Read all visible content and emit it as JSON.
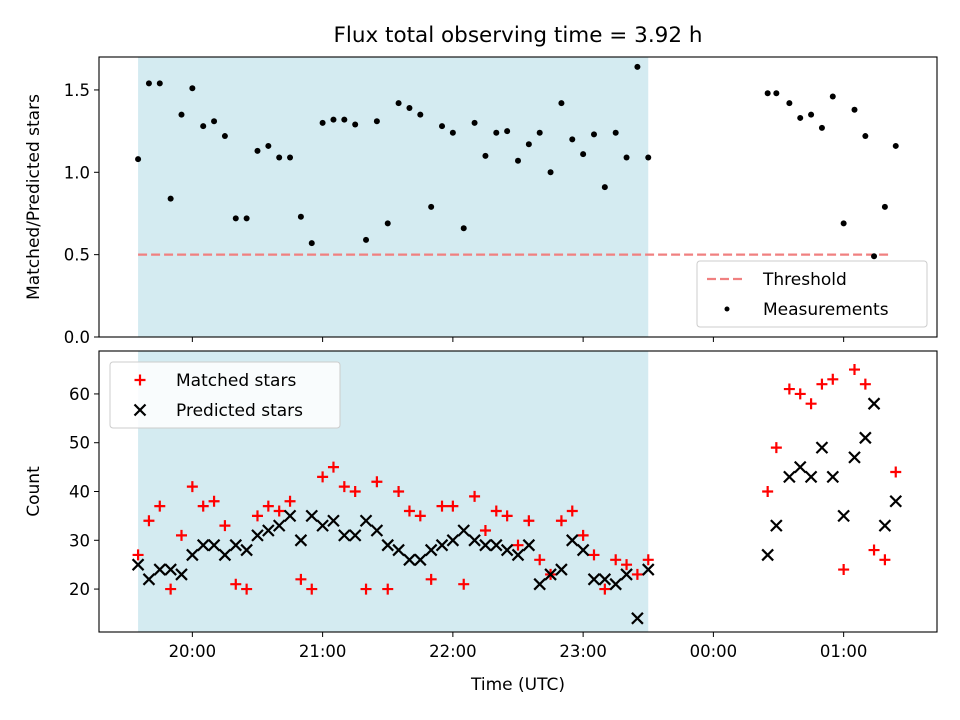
{
  "chart_data": {
    "title": "Flux total observing time = 3.92 h",
    "x_axis": {
      "label": "Time (UTC)",
      "ticks": [
        "20:00",
        "21:00",
        "22:00",
        "23:00",
        "00:00",
        "01:00"
      ]
    },
    "shaded_interval": {
      "start": "19:35",
      "end": "23:30",
      "color": "#d4ebf1"
    },
    "panels": [
      {
        "type": "scatter",
        "ylabel": "Matched/Predicted stars",
        "ylim": [
          0,
          1.7
        ],
        "yticks": [
          "0.0",
          "0.5",
          "1.0",
          "1.5"
        ],
        "legend_position": "lower right",
        "threshold": {
          "name": "Threshold",
          "value": 0.5,
          "from": "19:35",
          "to": "01:22",
          "color": "#f08080",
          "style": "dashed"
        },
        "series": [
          {
            "name": "Measurements",
            "color": "#000000",
            "marker": "dot",
            "points": [
              [
                "19:35",
                1.08
              ],
              [
                "19:40",
                1.54
              ],
              [
                "19:45",
                1.54
              ],
              [
                "19:50",
                0.84
              ],
              [
                "19:55",
                1.35
              ],
              [
                "20:00",
                1.51
              ],
              [
                "20:05",
                1.28
              ],
              [
                "20:10",
                1.31
              ],
              [
                "20:15",
                1.22
              ],
              [
                "20:20",
                0.72
              ],
              [
                "20:25",
                0.72
              ],
              [
                "20:30",
                1.13
              ],
              [
                "20:35",
                1.16
              ],
              [
                "20:40",
                1.09
              ],
              [
                "20:45",
                1.09
              ],
              [
                "20:50",
                0.73
              ],
              [
                "20:55",
                0.57
              ],
              [
                "21:00",
                1.3
              ],
              [
                "21:05",
                1.32
              ],
              [
                "21:10",
                1.32
              ],
              [
                "21:15",
                1.29
              ],
              [
                "21:20",
                0.59
              ],
              [
                "21:25",
                1.31
              ],
              [
                "21:30",
                0.69
              ],
              [
                "21:35",
                1.42
              ],
              [
                "21:40",
                1.39
              ],
              [
                "21:45",
                1.35
              ],
              [
                "21:50",
                0.79
              ],
              [
                "21:55",
                1.28
              ],
              [
                "22:00",
                1.24
              ],
              [
                "22:05",
                0.66
              ],
              [
                "22:10",
                1.3
              ],
              [
                "22:15",
                1.1
              ],
              [
                "22:20",
                1.24
              ],
              [
                "22:25",
                1.25
              ],
              [
                "22:30",
                1.07
              ],
              [
                "22:35",
                1.17
              ],
              [
                "22:40",
                1.24
              ],
              [
                "22:45",
                1.0
              ],
              [
                "22:50",
                1.42
              ],
              [
                "22:55",
                1.2
              ],
              [
                "23:00",
                1.11
              ],
              [
                "23:05",
                1.23
              ],
              [
                "23:10",
                0.91
              ],
              [
                "23:15",
                1.24
              ],
              [
                "23:20",
                1.09
              ],
              [
                "23:25",
                1.64
              ],
              [
                "23:30",
                1.09
              ],
              [
                "00:25",
                1.48
              ],
              [
                "00:29",
                1.48
              ],
              [
                "00:35",
                1.42
              ],
              [
                "00:40",
                1.33
              ],
              [
                "00:45",
                1.35
              ],
              [
                "00:50",
                1.27
              ],
              [
                "00:55",
                1.46
              ],
              [
                "01:00",
                0.69
              ],
              [
                "01:05",
                1.38
              ],
              [
                "01:10",
                1.22
              ],
              [
                "01:14",
                0.49
              ],
              [
                "01:19",
                0.79
              ],
              [
                "01:24",
                1.16
              ]
            ]
          }
        ]
      },
      {
        "type": "scatter",
        "ylabel": "Count",
        "ylim": [
          11.2,
          68.8
        ],
        "yticks": [
          "20",
          "30",
          "40",
          "50",
          "60"
        ],
        "legend_position": "upper left",
        "series": [
          {
            "name": "Matched stars",
            "color": "#ff0000",
            "marker": "plus",
            "points": [
              [
                "19:35",
                27
              ],
              [
                "19:40",
                34
              ],
              [
                "19:45",
                37
              ],
              [
                "19:50",
                20
              ],
              [
                "19:55",
                31
              ],
              [
                "20:00",
                41
              ],
              [
                "20:05",
                37
              ],
              [
                "20:10",
                38
              ],
              [
                "20:15",
                33
              ],
              [
                "20:20",
                21
              ],
              [
                "20:25",
                20
              ],
              [
                "20:30",
                35
              ],
              [
                "20:35",
                37
              ],
              [
                "20:40",
                36
              ],
              [
                "20:45",
                38
              ],
              [
                "20:50",
                22
              ],
              [
                "20:55",
                20
              ],
              [
                "21:00",
                43
              ],
              [
                "21:05",
                45
              ],
              [
                "21:10",
                41
              ],
              [
                "21:15",
                40
              ],
              [
                "21:20",
                20
              ],
              [
                "21:25",
                42
              ],
              [
                "21:30",
                20
              ],
              [
                "21:35",
                40
              ],
              [
                "21:40",
                36
              ],
              [
                "21:45",
                35
              ],
              [
                "21:50",
                22
              ],
              [
                "21:55",
                37
              ],
              [
                "22:00",
                37
              ],
              [
                "22:05",
                21
              ],
              [
                "22:10",
                39
              ],
              [
                "22:15",
                32
              ],
              [
                "22:20",
                36
              ],
              [
                "22:25",
                35
              ],
              [
                "22:30",
                29
              ],
              [
                "22:35",
                34
              ],
              [
                "22:40",
                26
              ],
              [
                "22:45",
                23
              ],
              [
                "22:50",
                34
              ],
              [
                "22:55",
                36
              ],
              [
                "23:00",
                31
              ],
              [
                "23:05",
                27
              ],
              [
                "23:10",
                20
              ],
              [
                "23:15",
                26
              ],
              [
                "23:20",
                25
              ],
              [
                "23:25",
                23
              ],
              [
                "23:30",
                26
              ],
              [
                "00:25",
                40
              ],
              [
                "00:29",
                49
              ],
              [
                "00:35",
                61
              ],
              [
                "00:40",
                60
              ],
              [
                "00:45",
                58
              ],
              [
                "00:50",
                62
              ],
              [
                "00:55",
                63
              ],
              [
                "01:00",
                24
              ],
              [
                "01:05",
                65
              ],
              [
                "01:10",
                62
              ],
              [
                "01:14",
                28
              ],
              [
                "01:19",
                26
              ],
              [
                "01:24",
                44
              ]
            ]
          },
          {
            "name": "Predicted stars",
            "color": "#000000",
            "marker": "x",
            "points": [
              [
                "19:35",
                25
              ],
              [
                "19:40",
                22
              ],
              [
                "19:45",
                24
              ],
              [
                "19:50",
                24
              ],
              [
                "19:55",
                23
              ],
              [
                "20:00",
                27
              ],
              [
                "20:05",
                29
              ],
              [
                "20:10",
                29
              ],
              [
                "20:15",
                27
              ],
              [
                "20:20",
                29
              ],
              [
                "20:25",
                28
              ],
              [
                "20:30",
                31
              ],
              [
                "20:35",
                32
              ],
              [
                "20:40",
                33
              ],
              [
                "20:45",
                35
              ],
              [
                "20:50",
                30
              ],
              [
                "20:55",
                35
              ],
              [
                "21:00",
                33
              ],
              [
                "21:05",
                34
              ],
              [
                "21:10",
                31
              ],
              [
                "21:15",
                31
              ],
              [
                "21:20",
                34
              ],
              [
                "21:25",
                32
              ],
              [
                "21:30",
                29
              ],
              [
                "21:35",
                28
              ],
              [
                "21:40",
                26
              ],
              [
                "21:45",
                26
              ],
              [
                "21:50",
                28
              ],
              [
                "21:55",
                29
              ],
              [
                "22:00",
                30
              ],
              [
                "22:05",
                32
              ],
              [
                "22:10",
                30
              ],
              [
                "22:15",
                29
              ],
              [
                "22:20",
                29
              ],
              [
                "22:25",
                28
              ],
              [
                "22:30",
                27
              ],
              [
                "22:35",
                29
              ],
              [
                "22:40",
                21
              ],
              [
                "22:45",
                23
              ],
              [
                "22:50",
                24
              ],
              [
                "22:55",
                30
              ],
              [
                "23:00",
                28
              ],
              [
                "23:05",
                22
              ],
              [
                "23:10",
                22
              ],
              [
                "23:15",
                21
              ],
              [
                "23:20",
                23
              ],
              [
                "23:25",
                14
              ],
              [
                "23:30",
                24
              ],
              [
                "00:25",
                27
              ],
              [
                "00:29",
                33
              ],
              [
                "00:35",
                43
              ],
              [
                "00:40",
                45
              ],
              [
                "00:45",
                43
              ],
              [
                "00:50",
                49
              ],
              [
                "00:55",
                43
              ],
              [
                "01:00",
                35
              ],
              [
                "01:05",
                47
              ],
              [
                "01:10",
                51
              ],
              [
                "01:14",
                58
              ],
              [
                "01:19",
                33
              ],
              [
                "01:24",
                38
              ]
            ]
          }
        ]
      }
    ]
  }
}
